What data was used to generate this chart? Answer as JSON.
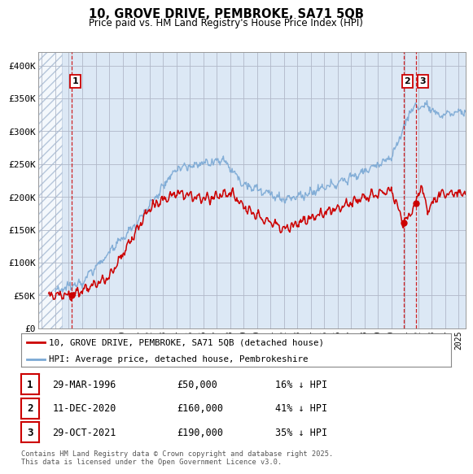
{
  "title_line1": "10, GROVE DRIVE, PEMBROKE, SA71 5QB",
  "title_line2": "Price paid vs. HM Land Registry's House Price Index (HPI)",
  "background_color": "#ffffff",
  "plot_bg_color": "#dce8f5",
  "grid_color": "#b0b8c8",
  "red_line_color": "#cc0000",
  "blue_line_color": "#7aa8d4",
  "dashed_line_color": "#cc0000",
  "legend_label_red": "10, GROVE DRIVE, PEMBROKE, SA71 5QB (detached house)",
  "legend_label_blue": "HPI: Average price, detached house, Pembrokeshire",
  "transactions": [
    {
      "label": "1",
      "date": "29-MAR-1996",
      "price": 50000,
      "pct": "16% ↓ HPI",
      "x_year": 1996.24
    },
    {
      "label": "2",
      "date": "11-DEC-2020",
      "price": 160000,
      "pct": "41% ↓ HPI",
      "x_year": 2020.94
    },
    {
      "label": "3",
      "date": "29-OCT-2021",
      "price": 190000,
      "pct": "35% ↓ HPI",
      "x_year": 2021.83
    }
  ],
  "table_rows": [
    [
      "1",
      "29-MAR-1996",
      "£50,000",
      "16% ↓ HPI"
    ],
    [
      "2",
      "11-DEC-2020",
      "£160,000",
      "41% ↓ HPI"
    ],
    [
      "3",
      "29-OCT-2021",
      "£190,000",
      "35% ↓ HPI"
    ]
  ],
  "footer_text": "Contains HM Land Registry data © Crown copyright and database right 2025.\nThis data is licensed under the Open Government Licence v3.0.",
  "xmin": 1993.7,
  "xmax": 2025.5,
  "ymin": 0,
  "ymax": 420000,
  "yticks": [
    0,
    50000,
    100000,
    150000,
    200000,
    250000,
    300000,
    350000,
    400000
  ],
  "ytick_labels": [
    "£0",
    "£50K",
    "£100K",
    "£150K",
    "£200K",
    "£250K",
    "£300K",
    "£350K",
    "£400K"
  ],
  "xticks": [
    1994,
    1995,
    1996,
    1997,
    1998,
    1999,
    2000,
    2001,
    2002,
    2003,
    2004,
    2005,
    2006,
    2007,
    2008,
    2009,
    2010,
    2011,
    2012,
    2013,
    2014,
    2015,
    2016,
    2017,
    2018,
    2019,
    2020,
    2021,
    2022,
    2023,
    2024,
    2025
  ],
  "hatch_end_year": 1995.5
}
